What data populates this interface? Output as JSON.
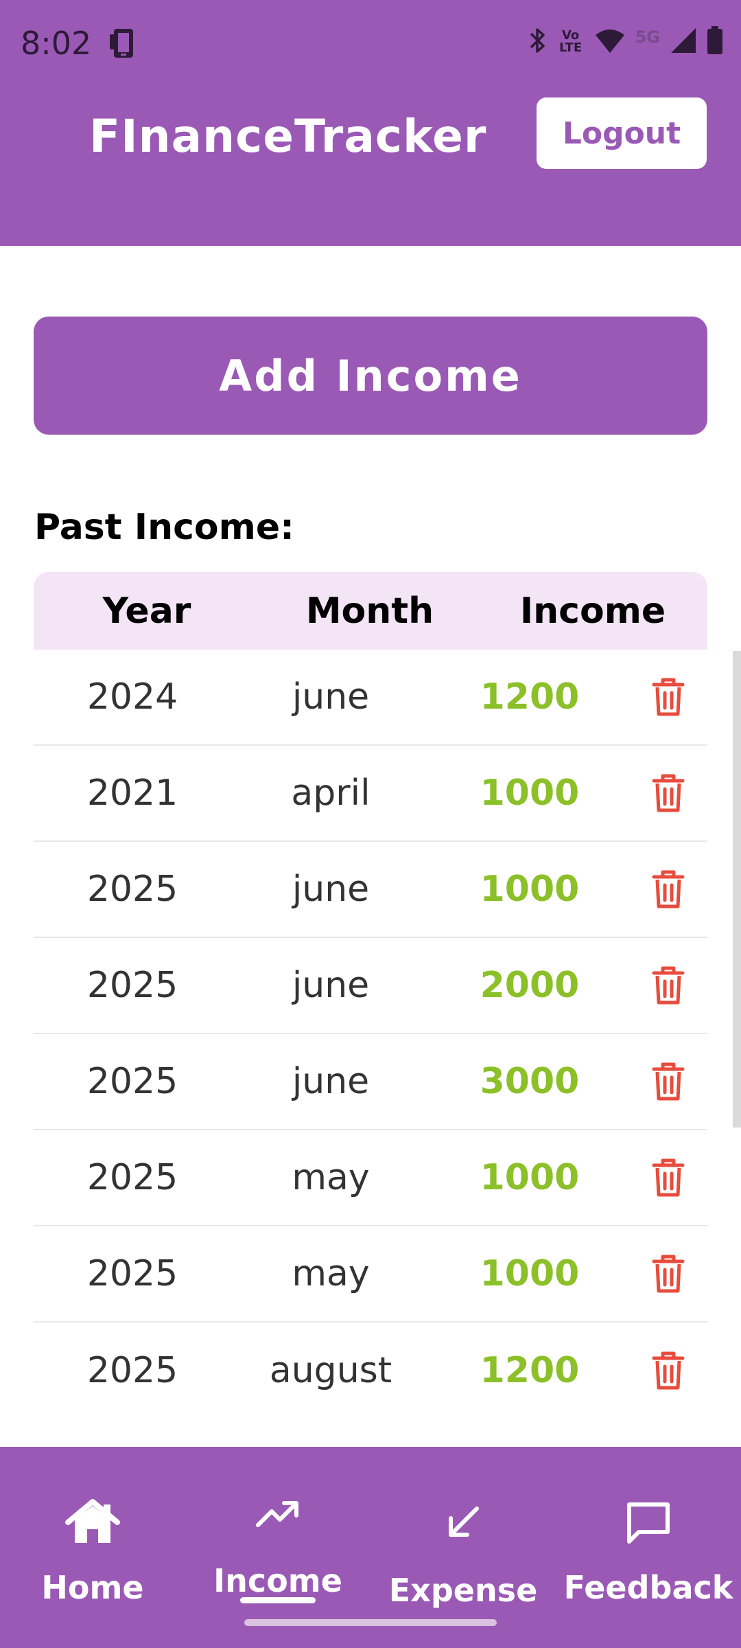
{
  "status_bar": {
    "time": "8:02",
    "lte_line1": "Vo",
    "lte_line2": "LTE",
    "network_label": "5G",
    "icons": [
      "notification-icon",
      "bluetooth-icon",
      "volte-icon",
      "wifi-icon",
      "signal-icon",
      "battery-icon"
    ]
  },
  "header": {
    "title": "FInanceTracker",
    "logout_label": "Logout"
  },
  "main": {
    "add_income_label": "Add Income",
    "section_title": "Past Income:"
  },
  "table": {
    "headers": [
      "Year",
      "Month",
      "Income"
    ],
    "rows": [
      {
        "year": "2024",
        "month": "june",
        "income": "1200"
      },
      {
        "year": "2021",
        "month": "april",
        "income": "1000"
      },
      {
        "year": "2025",
        "month": "june",
        "income": "1000"
      },
      {
        "year": "2025",
        "month": "june",
        "income": "2000"
      },
      {
        "year": "2025",
        "month": "june",
        "income": "3000"
      },
      {
        "year": "2025",
        "month": "may",
        "income": "1000"
      },
      {
        "year": "2025",
        "month": "may",
        "income": "1000"
      },
      {
        "year": "2025",
        "month": "august",
        "income": "1200"
      }
    ]
  },
  "bottom_nav": {
    "items": [
      {
        "label": "Home",
        "icon": "home-icon"
      },
      {
        "label": "Income",
        "icon": "trending-up-icon",
        "active": true
      },
      {
        "label": "Expense",
        "icon": "arrow-down-left-icon"
      },
      {
        "label": "Feedback",
        "icon": "chat-bubble-icon"
      }
    ]
  },
  "colors": {
    "primary": "#9b59b6",
    "table_header": "#f3e4f6",
    "income_amount": "#8cc029",
    "delete": "#e74c3c"
  }
}
